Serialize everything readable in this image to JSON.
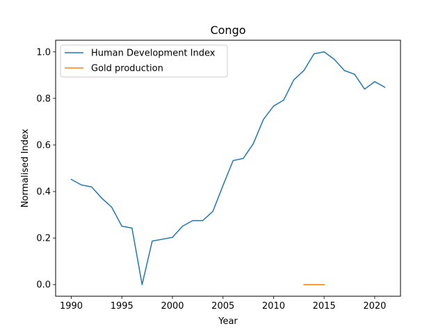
{
  "chart_data": {
    "type": "line",
    "title": "Congo",
    "xlabel": "Year",
    "ylabel": "Normalised Index",
    "xlim": [
      1988.45,
      2022.55
    ],
    "ylim": [
      -0.05,
      1.05
    ],
    "xticks": [
      1990,
      1995,
      2000,
      2005,
      2010,
      2015,
      2020
    ],
    "yticks": [
      0.0,
      0.2,
      0.4,
      0.6,
      0.8,
      1.0
    ],
    "xtick_labels": [
      "1990",
      "1995",
      "2000",
      "2005",
      "2010",
      "2015",
      "2020"
    ],
    "ytick_labels": [
      "0.0",
      "0.2",
      "0.4",
      "0.6",
      "0.8",
      "1.0"
    ],
    "grid": false,
    "legend_position": "top-left",
    "series": [
      {
        "name": "Human Development Index",
        "color": "#1f77b4",
        "x": [
          1990,
          1991,
          1992,
          1993,
          1994,
          1995,
          1996,
          1997,
          1998,
          1999,
          2000,
          2001,
          2002,
          2003,
          2004,
          2005,
          2006,
          2007,
          2008,
          2009,
          2010,
          2011,
          2012,
          2013,
          2014,
          2015,
          2016,
          2017,
          2018,
          2019,
          2020,
          2021
        ],
        "values": [
          0.452,
          0.428,
          0.42,
          0.372,
          0.332,
          0.251,
          0.243,
          0.0,
          0.187,
          0.195,
          0.203,
          0.251,
          0.275,
          0.275,
          0.315,
          0.426,
          0.533,
          0.542,
          0.606,
          0.71,
          0.767,
          0.793,
          0.88,
          0.92,
          0.992,
          1.0,
          0.968,
          0.92,
          0.904,
          0.84,
          0.872,
          0.848
        ]
      },
      {
        "name": "Gold production",
        "color": "#ff7f0e",
        "x": [
          2013,
          2014,
          2015
        ],
        "values": [
          0.0,
          0.0,
          0.0
        ]
      }
    ]
  }
}
